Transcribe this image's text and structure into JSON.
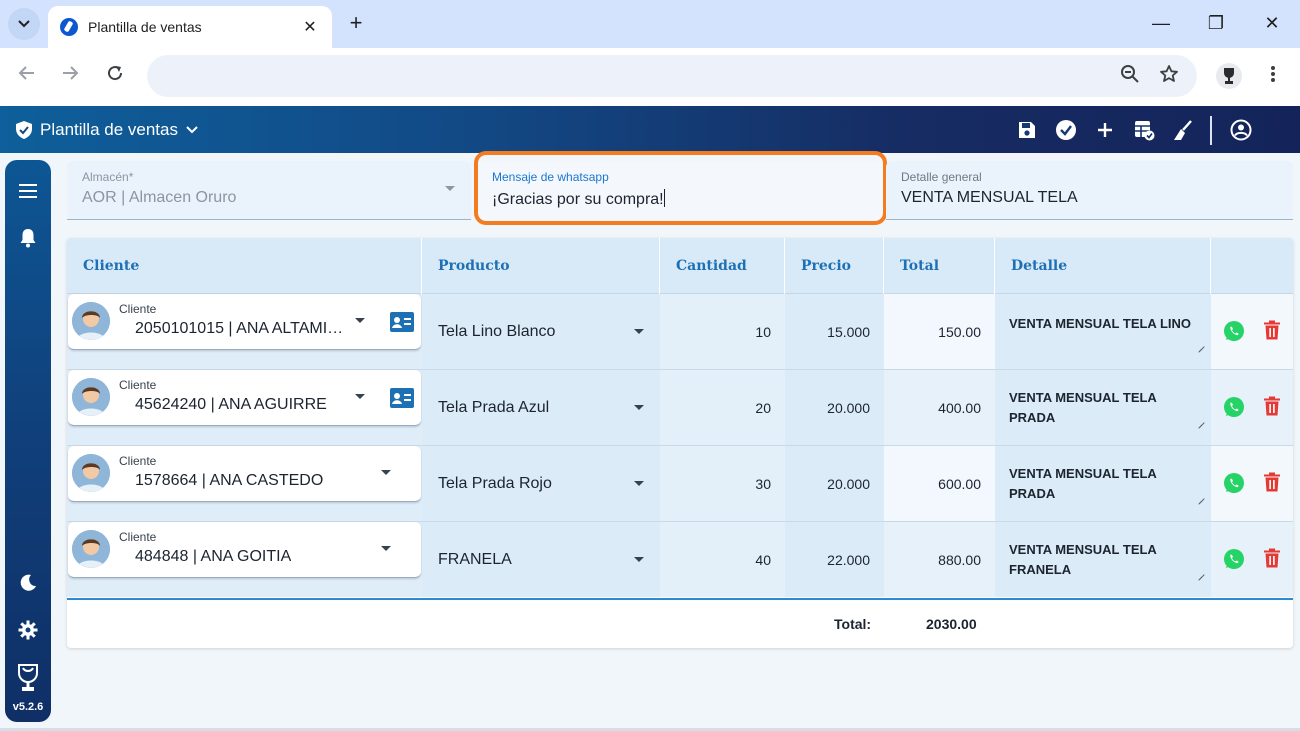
{
  "browser": {
    "tab_title": "Plantilla de ventas",
    "tab_close": "✕",
    "new_tab": "+",
    "window_minimize": "—",
    "window_restore": "❐",
    "window_close": "✕"
  },
  "app": {
    "title": "Plantilla de ventas",
    "version": "v5.2.6"
  },
  "form": {
    "almacen": {
      "label": "Almacén*",
      "value": "AOR | Almacen Oruro"
    },
    "whatsapp": {
      "label": "Mensaje de whatsapp",
      "value": "¡Gracias por su compra!"
    },
    "detalle": {
      "label": "Detalle general",
      "value": "VENTA MENSUAL TELA"
    }
  },
  "table": {
    "headers": [
      "Cliente",
      "Producto",
      "Cantidad",
      "Precio",
      "Total",
      "Detalle"
    ],
    "client_label": "Cliente",
    "rows": [
      {
        "cliente": "2050101015 | ANA ALTAMIR...",
        "producto": "Tela Lino Blanco",
        "cantidad": "10",
        "precio": "15.000",
        "total": "150.00",
        "detalle": "VENTA MENSUAL TELA LINO",
        "has_contact": true
      },
      {
        "cliente": "45624240 | ANA AGUIRRE",
        "producto": "Tela Prada Azul",
        "cantidad": "20",
        "precio": "20.000",
        "total": "400.00",
        "detalle": "VENTA MENSUAL TELA PRADA",
        "has_contact": true
      },
      {
        "cliente": "1578664 | ANA CASTEDO",
        "producto": "Tela Prada Rojo",
        "cantidad": "30",
        "precio": "20.000",
        "total": "600.00",
        "detalle": "VENTA MENSUAL TELA PRADA",
        "has_contact": false
      },
      {
        "cliente": "484848 | ANA GOITIA",
        "producto": "FRANELA",
        "cantidad": "40",
        "precio": "22.000",
        "total": "880.00",
        "detalle": "VENTA MENSUAL TELA FRANELA",
        "has_contact": false
      }
    ],
    "footer": {
      "label": "Total:",
      "value": "2030.00"
    }
  },
  "colors": {
    "accent": "#1e70b5",
    "focus": "#f47c20",
    "whatsapp": "#25d366",
    "delete": "#e53935",
    "header_start": "#0e5f9b",
    "header_end": "#14245a"
  }
}
